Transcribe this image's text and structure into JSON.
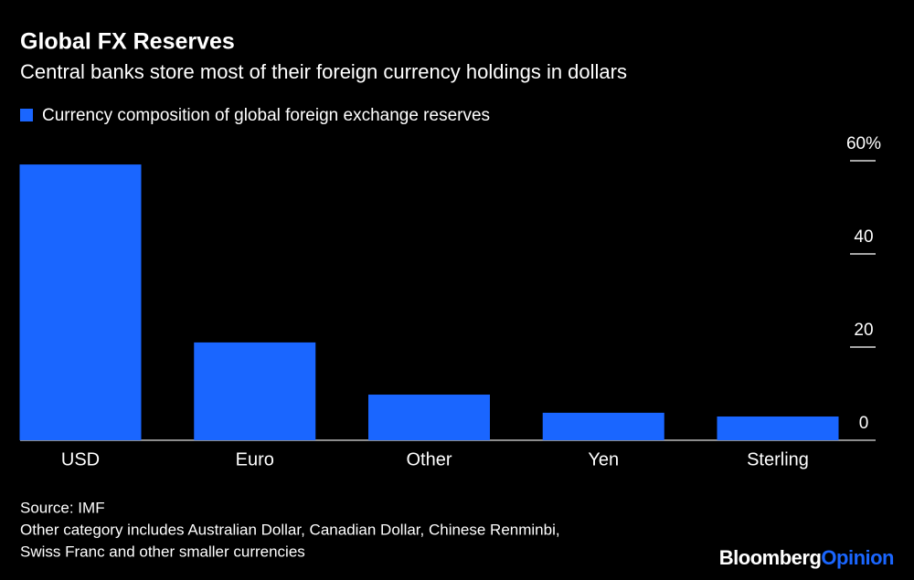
{
  "chart_data": {
    "type": "bar",
    "title": "Global FX Reserves",
    "subtitle": "Central banks store most of their foreign currency holdings in dollars",
    "categories": [
      "USD",
      "Euro",
      "Other",
      "Yen",
      "Sterling"
    ],
    "series": [
      {
        "name": "Currency composition of global foreign exchange reserves",
        "color": "#1a66ff",
        "values": [
          59.2,
          21.0,
          9.8,
          5.9,
          5.1
        ]
      }
    ],
    "ylim": [
      0,
      60
    ],
    "yticks": [
      0,
      20,
      40,
      {
        "value": 60,
        "label": "60%"
      }
    ],
    "notes": [
      "Source: IMF",
      "Other category includes Australian Dollar, Canadian Dollar, Chinese Renminbi,",
      "Swiss Franc and other smaller currencies"
    ],
    "brand": {
      "name": "Bloomberg",
      "section": "Opinion"
    }
  }
}
